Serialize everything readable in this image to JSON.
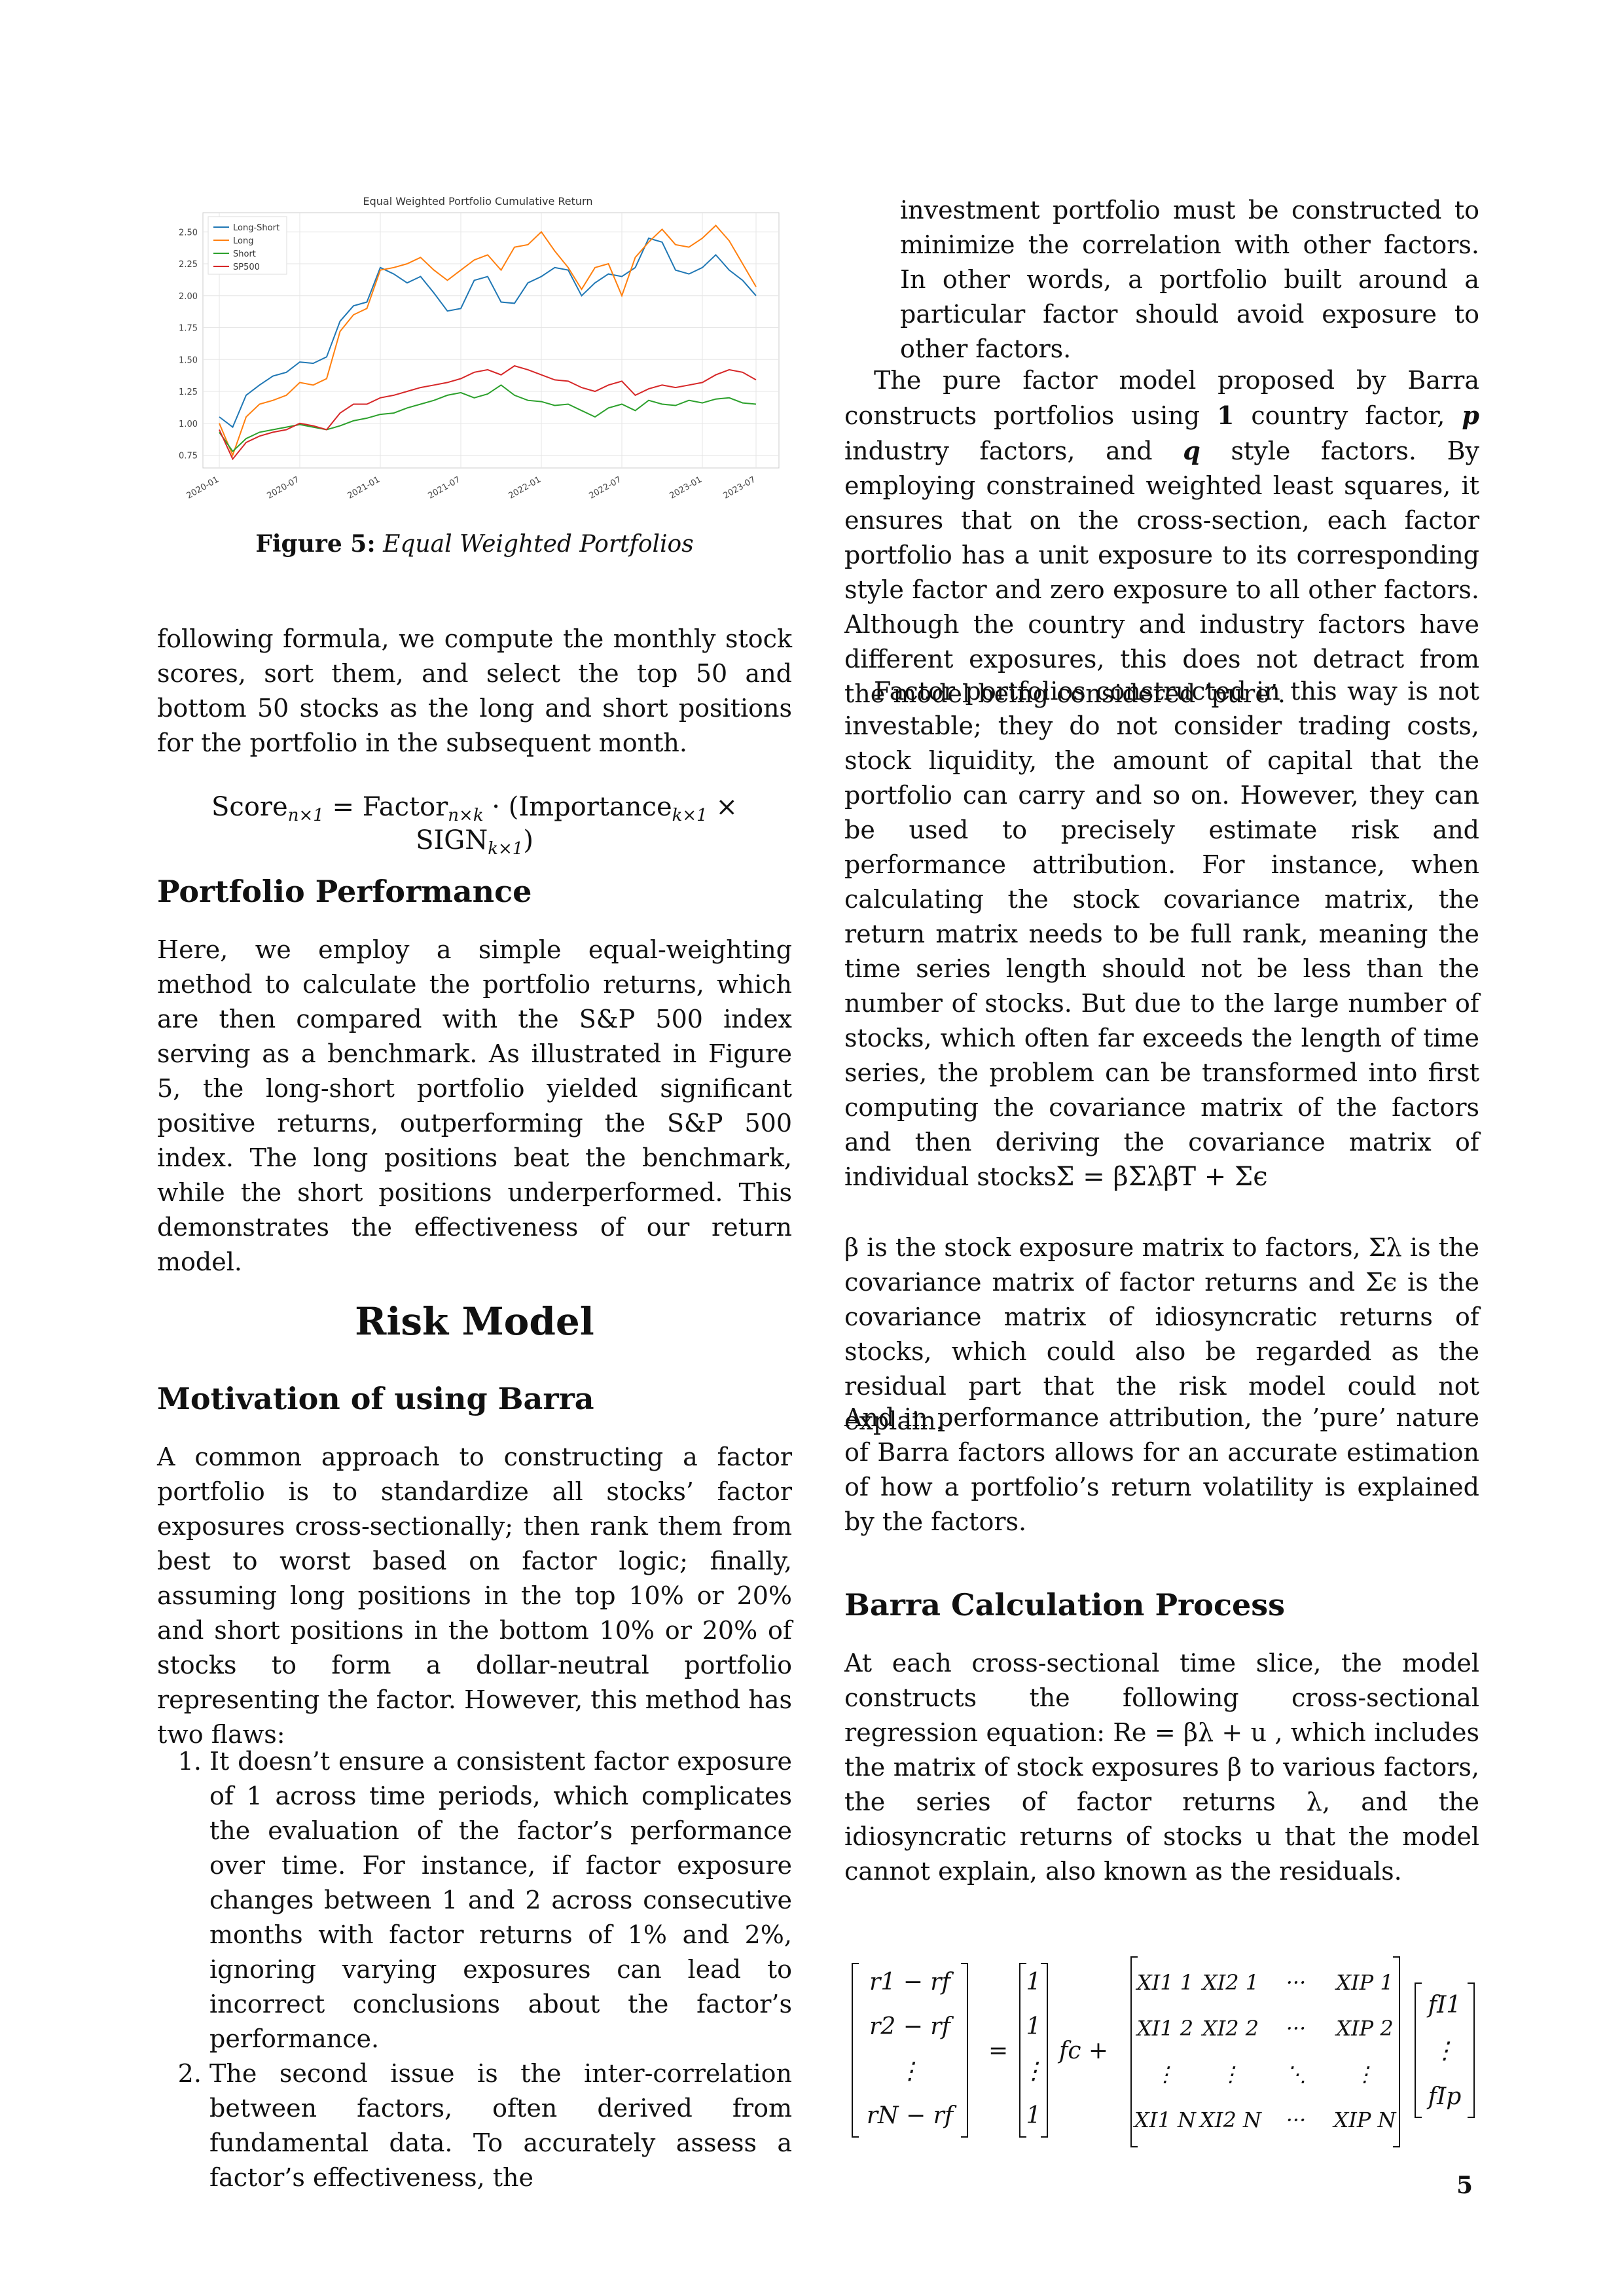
{
  "figure": {
    "caption_label": "Figure 5:",
    "caption_text": "Equal Weighted Portfolios",
    "chart_data": {
      "type": "line",
      "title": "Equal Weighted Portfolio Cumulative Return",
      "legend_position": "top-left",
      "grid": true,
      "ylim": [
        0.65,
        2.65
      ],
      "yticks": [
        "0.75",
        "1.00",
        "1.25",
        "1.50",
        "1.75",
        "2.00",
        "2.25",
        "2.50"
      ],
      "xtick_labels": [
        "2020-01",
        "2020-07",
        "2021-01",
        "2021-07",
        "2022-01",
        "2022-07",
        "2023-01",
        "2023-07"
      ],
      "x_start": "2020-01",
      "series": [
        {
          "name": "Long-Short",
          "color": "#1f77b4",
          "values": [
            1.05,
            0.97,
            1.22,
            1.3,
            1.37,
            1.4,
            1.48,
            1.47,
            1.52,
            1.8,
            1.92,
            1.95,
            2.22,
            2.17,
            2.1,
            2.15,
            2.02,
            1.88,
            1.9,
            2.12,
            2.15,
            1.95,
            1.94,
            2.1,
            2.15,
            2.22,
            2.2,
            2.0,
            2.1,
            2.17,
            2.15,
            2.22,
            2.45,
            2.42,
            2.2,
            2.17,
            2.22,
            2.32,
            2.2,
            2.12,
            2.0
          ]
        },
        {
          "name": "Long",
          "color": "#ff7f0e",
          "values": [
            1.0,
            0.75,
            1.05,
            1.15,
            1.18,
            1.22,
            1.32,
            1.3,
            1.35,
            1.72,
            1.85,
            1.9,
            2.2,
            2.22,
            2.25,
            2.3,
            2.2,
            2.12,
            2.2,
            2.28,
            2.32,
            2.2,
            2.38,
            2.4,
            2.5,
            2.35,
            2.22,
            2.05,
            2.22,
            2.25,
            2.0,
            2.3,
            2.42,
            2.52,
            2.4,
            2.38,
            2.45,
            2.55,
            2.43,
            2.25,
            2.07
          ]
        },
        {
          "name": "Short",
          "color": "#2ca02c",
          "values": [
            0.93,
            0.78,
            0.88,
            0.93,
            0.95,
            0.97,
            0.99,
            0.97,
            0.95,
            0.98,
            1.02,
            1.04,
            1.07,
            1.08,
            1.12,
            1.15,
            1.18,
            1.22,
            1.24,
            1.2,
            1.23,
            1.3,
            1.22,
            1.18,
            1.17,
            1.14,
            1.15,
            1.1,
            1.05,
            1.12,
            1.15,
            1.1,
            1.18,
            1.15,
            1.14,
            1.18,
            1.16,
            1.19,
            1.2,
            1.16,
            1.15
          ]
        },
        {
          "name": "SP500",
          "color": "#d62728",
          "values": [
            0.95,
            0.72,
            0.85,
            0.9,
            0.93,
            0.95,
            1.0,
            0.98,
            0.95,
            1.08,
            1.15,
            1.15,
            1.2,
            1.22,
            1.25,
            1.28,
            1.3,
            1.32,
            1.35,
            1.4,
            1.42,
            1.38,
            1.45,
            1.42,
            1.38,
            1.34,
            1.33,
            1.28,
            1.25,
            1.3,
            1.33,
            1.22,
            1.27,
            1.3,
            1.28,
            1.3,
            1.32,
            1.38,
            1.42,
            1.4,
            1.34
          ]
        }
      ]
    }
  },
  "left": {
    "p1": "following formula, we compute the monthly stock scores, sort them, and select the top 50 and bottom 50 stocks as the long and short positions for the portfolio in the subsequent month.",
    "score_eq": {
      "score": "Score",
      "score_sub": "n×1",
      "eq_factor": " = Factor",
      "factor_sub": "n×k",
      "dot_imp": " · (Importance",
      "imp_sub": "k×1",
      "times_sign": " × SIGN",
      "sign_sub": "k×1",
      "close": ")"
    },
    "h_portfolio": "Portfolio Performance",
    "p2": "Here, we employ a simple equal-weighting method to calculate the portfolio returns, which are then compared with the S&P 500 index serving as a benchmark. As illustrated in Figure 5, the long-short portfolio yielded significant positive returns, outperforming the S&P 500 index. The long positions beat the benchmark, while the short positions underperformed. This demonstrates the effectiveness of our return model.",
    "h_risk": "Risk Model",
    "h_motivation": "Motivation of using Barra",
    "p3": "A common approach to constructing a factor portfolio is to standardize all stocks’ factor exposures cross-sectionally; then rank them from best to worst based on factor logic; finally, assuming long positions in the top 10% or 20% and short positions in the bottom 10% or 20% of stocks to form a dollar-neutral portfolio representing the factor. However, this method has two flaws:",
    "list": [
      "It doesn’t ensure a consistent factor exposure of 1 across time periods, which complicates the evaluation of the factor’s performance over time. For instance, if factor exposure changes between 1 and 2 across consecutive months with factor returns of 1% and 2%, ignoring varying exposures can lead to incorrect conclusions about the factor’s performance.",
      "The second issue is the inter-correlation between factors, often derived from fundamental data. To accurately assess a factor’s effectiveness, the"
    ]
  },
  "right": {
    "p0": "investment portfolio must be constructed to minimize the correlation with other factors. In other words, a portfolio built around a particular factor should avoid exposure to other factors.",
    "p1_a": "The pure factor model proposed by Barra constructs portfolios using ",
    "p1_one": "1",
    "p1_b": " country factor, ",
    "p1_p": "p",
    "p1_c": " industry factors, and ",
    "p1_q": "q",
    "p1_d": " style factors. By employing constrained weighted least squares, it ensures that on the cross-section, each factor portfolio has a unit exposure to its corresponding style factor and zero exposure to all other factors. Although the country and industry factors have different exposures, this does not detract from the model being considered ’pure’.",
    "p2": "Factor portfolios constructed in this way is not investable; they do not consider trading costs, stock liquidity, the amount of capital that the portfolio can carry and so on. However, they can be used to precisely estimate risk and performance attribution. For instance, when calculating the stock covariance matrix, the return matrix needs to be full rank, meaning the time series length should not be less than the number of stocks. But due to the large number of stocks, which often far exceeds the length of time series, the problem can be transformed into first computing the covariance matrix of the factors and then deriving the covariance matrix of individual stocks.",
    "cov_eq": "Σ = βΣλβT + Σϵ",
    "p3": "β is the stock exposure matrix to factors, Σλ is the covariance matrix of factor returns and Σϵ is the covariance matrix of idiosyncratic returns of stocks, which could also be regarded as the residual part that the risk model could not explain.",
    "p4": "And in performance attribution, the ’pure’ nature of Barra factors allows for an accurate estimation of how a portfolio’s return volatility is explained by the factors.",
    "h_calc": "Barra Calculation Process",
    "p5": "At each cross-sectional time slice, the model constructs the following cross-sectional regression equation: Re = βλ + u , which includes the matrix of stock exposures β to various factors, the series of factor returns λ, and the idiosyncratic returns of stocks u that the model cannot explain, also known as the residuals."
  },
  "matrix_eq": {
    "lhs": [
      "r1 − rf",
      "r2 − rf",
      "⋮",
      "rN − rf"
    ],
    "ones": [
      "1",
      "1",
      "⋮",
      "1"
    ],
    "eq": "=",
    "fc": "fc +",
    "x_rows": [
      [
        "XI1 1",
        "XI2 1",
        "···",
        "XIP 1"
      ],
      [
        "XI1 2",
        "XI2 2",
        "···",
        "XIP 2"
      ],
      [
        "⋮",
        "⋮",
        "⋱",
        "⋮"
      ],
      [
        "XI1 N",
        "XI2 N",
        "···",
        "XIP N"
      ]
    ],
    "f": [
      "fI1",
      "⋮",
      "fIp"
    ]
  },
  "page_number": "5"
}
